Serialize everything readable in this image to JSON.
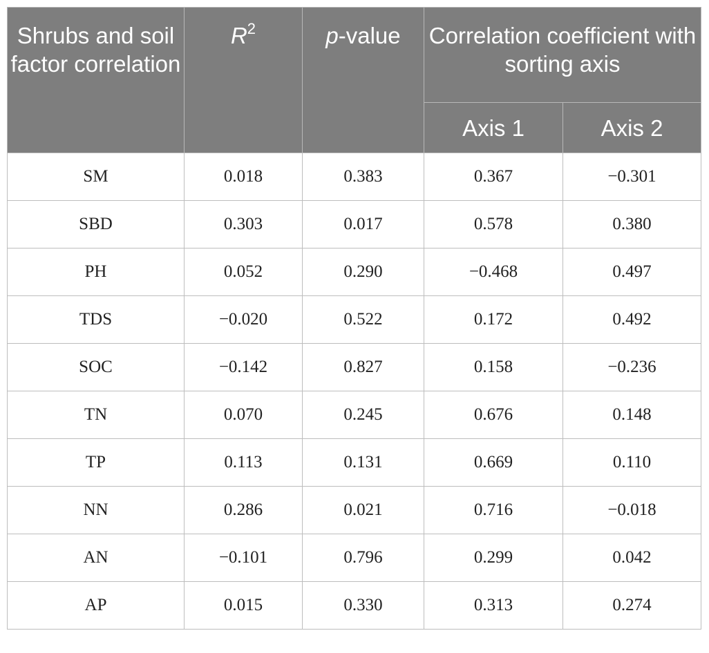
{
  "header": {
    "col1": "Shrubs and soil factor correlation",
    "col2_base": "R",
    "col2_sup": "2",
    "col3_italic": "p",
    "col3_rest": "-value",
    "group": "Correlation coefficient with sorting axis",
    "axis1": "Axis 1",
    "axis2": "Axis 2"
  },
  "rows": [
    {
      "factor": "SM",
      "r2": "0.018",
      "p": "0.383",
      "axis1": "0.367",
      "axis2": "−0.301"
    },
    {
      "factor": "SBD",
      "r2": "0.303",
      "p": "0.017",
      "axis1": "0.578",
      "axis2": "0.380"
    },
    {
      "factor": "PH",
      "r2": "0.052",
      "p": "0.290",
      "axis1": "−0.468",
      "axis2": "0.497"
    },
    {
      "factor": "TDS",
      "r2": "−0.020",
      "p": "0.522",
      "axis1": "0.172",
      "axis2": "0.492"
    },
    {
      "factor": "SOC",
      "r2": "−0.142",
      "p": "0.827",
      "axis1": "0.158",
      "axis2": "−0.236"
    },
    {
      "factor": "TN",
      "r2": "0.070",
      "p": "0.245",
      "axis1": "0.676",
      "axis2": "0.148"
    },
    {
      "factor": "TP",
      "r2": "0.113",
      "p": "0.131",
      "axis1": "0.669",
      "axis2": "0.110"
    },
    {
      "factor": "NN",
      "r2": "0.286",
      "p": "0.021",
      "axis1": "0.716",
      "axis2": "−0.018"
    },
    {
      "factor": "AN",
      "r2": "−0.101",
      "p": "0.796",
      "axis1": "0.299",
      "axis2": "0.042"
    },
    {
      "factor": "AP",
      "r2": "0.015",
      "p": "0.330",
      "axis1": "0.313",
      "axis2": "0.274"
    }
  ]
}
